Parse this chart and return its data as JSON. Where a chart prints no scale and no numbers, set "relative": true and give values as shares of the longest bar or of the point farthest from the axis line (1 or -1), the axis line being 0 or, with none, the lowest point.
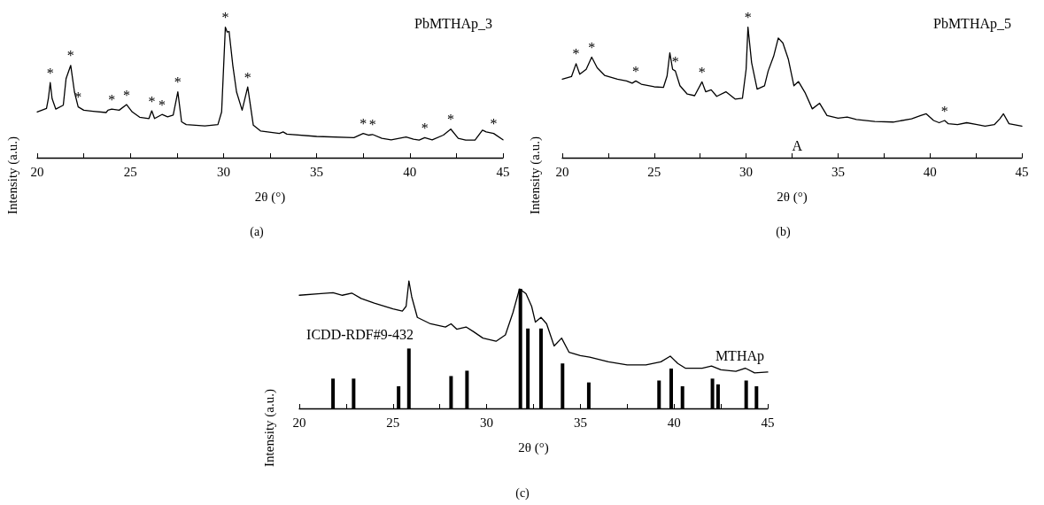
{
  "chart_data": [
    {
      "type": "line",
      "title": "(a)",
      "xlabel": "2θ (°)",
      "ylabel": "Intensity (a.u.)",
      "relative": true,
      "marker": "none",
      "line_style": "solid",
      "grid": false,
      "tick_labels": "x",
      "xlim": [
        20,
        45
      ],
      "xticks": [
        20,
        {
          "value": 22.5,
          "label": null
        },
        25,
        {
          "value": 27.5,
          "label": null
        },
        30,
        {
          "value": 32.5,
          "label": null
        },
        35,
        {
          "value": 37.5,
          "label": null
        },
        40,
        {
          "value": 42.5,
          "label": null
        },
        45
      ],
      "series": [
        {
          "name": "PbMTHAp_3",
          "color": "#000000",
          "x": [
            20,
            20.5,
            20.6,
            20.7,
            20.8,
            21.0,
            21.4,
            21.55,
            21.8,
            22.0,
            22.2,
            22.5,
            23,
            23.7,
            23.8,
            24.0,
            24.4,
            24.8,
            25.1,
            25.5,
            26.0,
            26.15,
            26.3,
            26.7,
            27.0,
            27.3,
            27.55,
            27.75,
            28,
            29,
            29.7,
            29.9,
            30.1,
            30.2,
            30.3,
            30.5,
            30.7,
            31.0,
            31.3,
            31.6,
            32,
            33,
            33.2,
            33.4,
            35,
            37,
            37.5,
            37.8,
            38.0,
            38.5,
            39.0,
            39.8,
            40.2,
            40.5,
            40.8,
            41.2,
            41.8,
            42.2,
            42.6,
            43,
            43.5,
            43.9,
            44.1,
            44.5,
            45
          ],
          "values": [
            0.351,
            0.377,
            0.453,
            0.575,
            0.453,
            0.372,
            0.402,
            0.606,
            0.707,
            0.504,
            0.389,
            0.364,
            0.356,
            0.346,
            0.364,
            0.372,
            0.364,
            0.407,
            0.351,
            0.31,
            0.3,
            0.359,
            0.3,
            0.331,
            0.313,
            0.326,
            0.504,
            0.275,
            0.254,
            0.244,
            0.254,
            0.351,
            1,
            0.962,
            0.967,
            0.707,
            0.504,
            0.364,
            0.542,
            0.249,
            0.204,
            0.186,
            0.198,
            0.181,
            0.163,
            0.153,
            0.186,
            0.173,
            0.178,
            0.148,
            0.137,
            0.158,
            0.142,
            0.135,
            0.153,
            0.137,
            0.173,
            0.219,
            0.148,
            0.135,
            0.135,
            0.211,
            0.198,
            0.186,
            0.137
          ]
        }
      ],
      "annotations": [
        {
          "text": "*",
          "x": 20.7,
          "y": 0.575
        },
        {
          "text": "*",
          "x": 21.8,
          "y": 0.707
        },
        {
          "text": "*",
          "x": 22.2,
          "y": 0.389
        },
        {
          "text": "*",
          "x": 24.0,
          "y": 0.372
        },
        {
          "text": "*",
          "x": 24.8,
          "y": 0.407
        },
        {
          "text": "*",
          "x": 26.15,
          "y": 0.359
        },
        {
          "text": "*",
          "x": 26.7,
          "y": 0.331
        },
        {
          "text": "*",
          "x": 27.55,
          "y": 0.504
        },
        {
          "text": "*",
          "x": 30.1,
          "y": 1
        },
        {
          "text": "*",
          "x": 31.3,
          "y": 0.542
        },
        {
          "text": "*",
          "x": 37.5,
          "y": 0.186
        },
        {
          "text": "*",
          "x": 38.0,
          "y": 0.178
        },
        {
          "text": "*",
          "x": 40.8,
          "y": 0.153
        },
        {
          "text": "*",
          "x": 42.2,
          "y": 0.219
        },
        {
          "text": "*",
          "x": 44.5,
          "y": 0.186
        }
      ]
    },
    {
      "type": "line",
      "title": "(b)",
      "xlabel": "2θ (°)",
      "ylabel": "Intensity (a.u.)",
      "relative": true,
      "marker": "none",
      "line_style": "solid",
      "grid": false,
      "tick_labels": "x",
      "xlim": [
        20,
        45
      ],
      "xticks": [
        20,
        {
          "value": 22.5,
          "label": null
        },
        25,
        {
          "value": 27.5,
          "label": null
        },
        30,
        {
          "value": 32.5,
          "label": null
        },
        35,
        {
          "value": 37.5,
          "label": null
        },
        40,
        {
          "value": 42.5,
          "label": null
        },
        45
      ],
      "series": [
        {
          "name": "PbMTHAp_5",
          "color": "#000000",
          "x": [
            20,
            20.5,
            20.75,
            20.95,
            21.3,
            21.6,
            21.9,
            22.3,
            23,
            23.5,
            23.8,
            24.0,
            24.3,
            25,
            25.5,
            25.7,
            25.85,
            26.0,
            26.15,
            26.4,
            26.8,
            27.2,
            27.6,
            27.8,
            28.1,
            28.4,
            28.9,
            29.4,
            29.8,
            30.0,
            30.1,
            30.3,
            30.6,
            31.0,
            31.2,
            31.5,
            31.75,
            32.0,
            32.3,
            32.6,
            32.85,
            33.2,
            33.6,
            34.0,
            34.4,
            35,
            35.5,
            36,
            37,
            38,
            39,
            39.5,
            39.8,
            40.2,
            40.5,
            40.8,
            41.0,
            41.5,
            42,
            42.5,
            43,
            43.5,
            43.8,
            44.0,
            44.3,
            45
          ],
          "values": [
            0.601,
            0.621,
            0.72,
            0.639,
            0.677,
            0.77,
            0.689,
            0.631,
            0.601,
            0.588,
            0.571,
            0.588,
            0.563,
            0.543,
            0.538,
            0.626,
            0.803,
            0.677,
            0.664,
            0.551,
            0.487,
            0.475,
            0.581,
            0.505,
            0.52,
            0.47,
            0.505,
            0.449,
            0.455,
            0.677,
            1,
            0.727,
            0.525,
            0.551,
            0.664,
            0.778,
            0.917,
            0.879,
            0.753,
            0.551,
            0.583,
            0.5,
            0.374,
            0.417,
            0.323,
            0.303,
            0.311,
            0.293,
            0.278,
            0.273,
            0.298,
            0.323,
            0.336,
            0.285,
            0.268,
            0.285,
            0.26,
            0.253,
            0.268,
            0.255,
            0.242,
            0.253,
            0.298,
            0.336,
            0.26,
            0.242
          ]
        }
      ],
      "annotations": [
        {
          "text": "*",
          "x": 20.75,
          "y": 0.72
        },
        {
          "text": "*",
          "x": 21.6,
          "y": 0.77
        },
        {
          "text": "*",
          "x": 24.0,
          "y": 0.588
        },
        {
          "text": "*",
          "x": 26.15,
          "y": 0.664
        },
        {
          "text": "*",
          "x": 27.6,
          "y": 0.581
        },
        {
          "text": "*",
          "x": 30.1,
          "y": 1
        },
        {
          "text": "*",
          "x": 40.8,
          "y": 0.285
        },
        "A"
      ]
    },
    {
      "type": "line",
      "title": "(c)",
      "xlabel": "2θ (°)",
      "ylabel": "Intensity (a.u.)",
      "relative": true,
      "marker": "none",
      "line_style": "solid",
      "grid": false,
      "tick_labels": "x",
      "xlim": [
        20,
        45
      ],
      "xticks": [
        20,
        {
          "value": 22.5,
          "label": null
        },
        25,
        {
          "value": 27.5,
          "label": null
        },
        30,
        {
          "value": 32.5,
          "label": null
        },
        35,
        {
          "value": 37.5,
          "label": null
        },
        40,
        {
          "value": 42.5,
          "label": null
        },
        45
      ],
      "series": [
        {
          "name": "MTHAp",
          "color": "#000000",
          "x": [
            20,
            21,
            21.8,
            22.3,
            22.8,
            23.3,
            24,
            25,
            25.5,
            25.7,
            25.85,
            26.0,
            26.3,
            27,
            27.8,
            28.1,
            28.4,
            28.9,
            29.3,
            29.8,
            30.5,
            31.0,
            31.4,
            31.75,
            32.1,
            32.4,
            32.6,
            32.9,
            33.2,
            33.6,
            34.0,
            34.4,
            35,
            35.5,
            36.5,
            37.5,
            38.5,
            39.3,
            39.8,
            40.2,
            40.6,
            41.5,
            42.0,
            42.5,
            43.3,
            43.8,
            44.3,
            45
          ],
          "values": [
            0.888,
            0.9,
            0.908,
            0.888,
            0.905,
            0.863,
            0.826,
            0.781,
            0.764,
            0.801,
            1,
            0.876,
            0.714,
            0.664,
            0.639,
            0.664,
            0.622,
            0.639,
            0.602,
            0.552,
            0.527,
            0.577,
            0.751,
            0.938,
            0.9,
            0.801,
            0.677,
            0.714,
            0.664,
            0.49,
            0.552,
            0.44,
            0.415,
            0.403,
            0.366,
            0.341,
            0.341,
            0.366,
            0.41,
            0.353,
            0.316,
            0.316,
            0.333,
            0.303,
            0.291,
            0.316,
            0.279,
            0.286
          ]
        },
        {
          "name": "ICDD-RDF#9-432",
          "type": "bar",
          "color": "#000000",
          "x": [
            21.8,
            22.9,
            25.3,
            25.85,
            28.1,
            28.95,
            31.8,
            32.2,
            32.9,
            34.05,
            35.45,
            39.2,
            39.85,
            40.45,
            42.05,
            42.35,
            43.85,
            44.4
          ],
          "values": [
            0.234,
            0.234,
            0.174,
            0.47,
            0.254,
            0.296,
            0.938,
            0.627,
            0.627,
            0.353,
            0.204,
            0.219,
            0.313,
            0.174,
            0.234,
            0.189,
            0.219,
            0.174
          ]
        }
      ]
    }
  ]
}
